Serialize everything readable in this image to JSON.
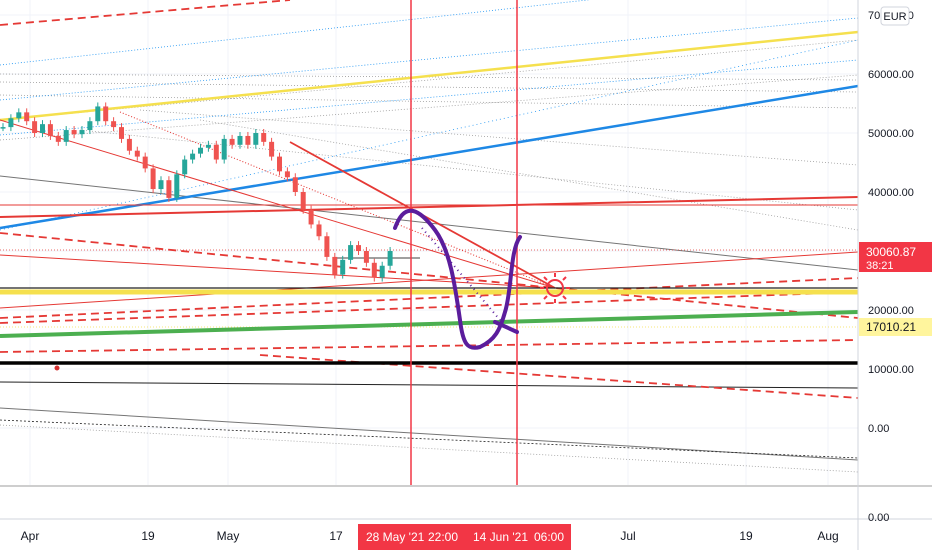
{
  "chart_data": {
    "type": "line",
    "currency": "EUR",
    "y_axis": {
      "scale": "linear",
      "ticks": [
        70000,
        60000,
        50000,
        40000,
        30000,
        20000,
        10000,
        0
      ],
      "tick_labels": [
        "70000.00",
        "60000.00",
        "50000.00",
        "40000.00",
        "30000.00",
        "20000.00",
        "10000.00",
        "0.00"
      ],
      "ylim": [
        -2000,
        72000
      ],
      "lower_pane_label": "0.00"
    },
    "x_axis": {
      "tick_labels": [
        "Apr",
        "19",
        "May",
        "17",
        "Jul",
        "19",
        "Aug"
      ],
      "highlighted_labels": [
        "28 May '21",
        "22:00",
        "14 Jun '21",
        "06:00"
      ]
    },
    "price_labels": [
      {
        "value": "30060.87",
        "sub": "38:21",
        "color": "#f23645"
      },
      {
        "value": "17010.21",
        "color": "#fff59d"
      }
    ],
    "grid": true,
    "legend": "none",
    "series": [
      {
        "values": [
          51000,
          52500,
          53500,
          52000,
          50000,
          51500,
          49500,
          48500,
          50500,
          49800,
          50500,
          52000,
          54500,
          52000,
          51000,
          49000,
          47000,
          46000,
          44000,
          40500,
          42000,
          39000,
          43000,
          45500,
          46500,
          47500,
          48000,
          45500,
          49000,
          48000,
          49500,
          48000,
          50000,
          48500,
          46000,
          43500,
          42500,
          40000,
          37000,
          34500,
          32500,
          29000,
          26000,
          28500,
          31000,
          30000,
          28000,
          25500,
          27500,
          30000
        ],
        "color": "#26a69a"
      }
    ],
    "annotations": [
      {
        "type": "vertical-line",
        "at": "28 May '21",
        "color": "#f23645"
      },
      {
        "type": "vertical-line",
        "at": "14 Jun '21",
        "color": "#f23645"
      },
      {
        "type": "hand-drawn-path",
        "color": "#4a148c"
      },
      {
        "type": "sun-marker",
        "color": "#f23645"
      }
    ]
  }
}
